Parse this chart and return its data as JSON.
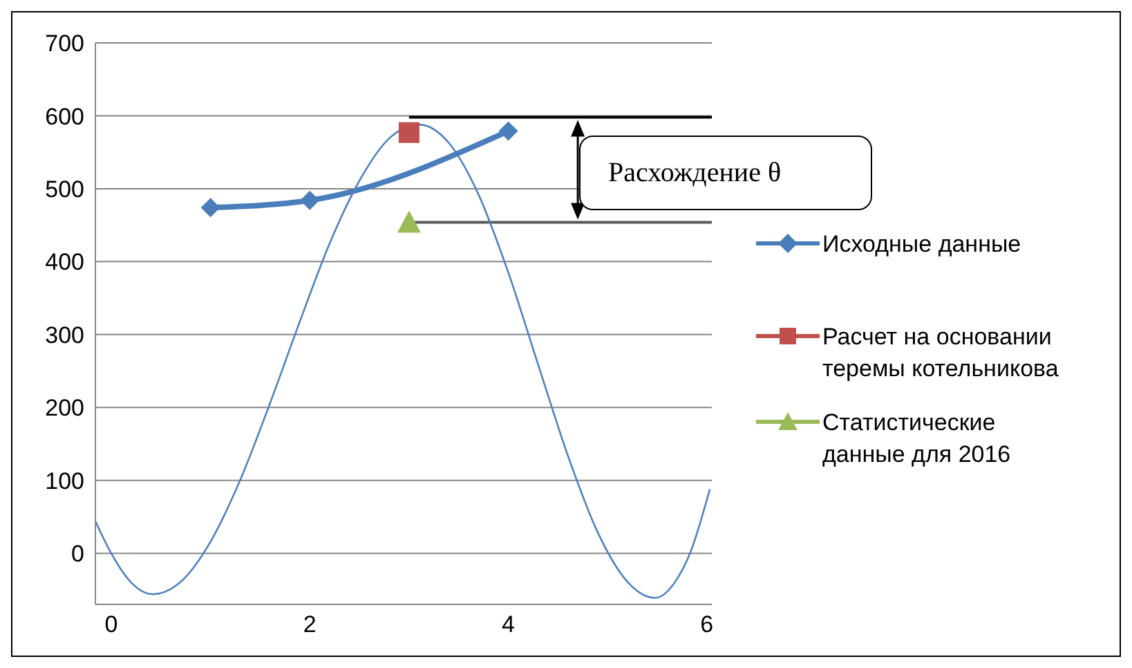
{
  "chart_data": {
    "type": "line",
    "xlim": [
      -0.16,
      6.05
    ],
    "xticks": [
      0,
      2,
      4,
      6
    ],
    "ylim": [
      -70,
      700
    ],
    "yticks": [
      0,
      100,
      200,
      300,
      400,
      500,
      600,
      700
    ],
    "grid": "y",
    "legend": "right",
    "annotations": [
      "Расхождение θ"
    ],
    "ref_lines": [
      {
        "axis": "y",
        "value": 598,
        "color": "#000000"
      },
      {
        "axis": "y",
        "value": 454,
        "color": "#595959"
      }
    ],
    "series": [
      {
        "color": "#4f81bd",
        "marker": "none",
        "x": [
          -0.16,
          0,
          0.2,
          0.42,
          0.7,
          1.0,
          1.3,
          1.6,
          1.9,
          2.2,
          2.5,
          2.8,
          3.1,
          3.4,
          3.7,
          4.0,
          4.3,
          4.6,
          4.9,
          5.2,
          5.48,
          5.7,
          5.83,
          6.03
        ],
        "values": [
          44,
          0,
          -40,
          -56,
          -39,
          16,
          101,
          206,
          318,
          425,
          511,
          569,
          588,
          563,
          492,
          385,
          259,
          134,
          29,
          -39,
          -61,
          -35,
          0,
          88
        ]
      },
      {
        "name": "Исходные данные",
        "color": "#4a7ebb",
        "marker": "diamond",
        "x": [
          1,
          2,
          4
        ],
        "values": [
          474,
          484,
          579
        ]
      },
      {
        "name": "Расчет на основании теремы котельникова",
        "color": "#c0504d",
        "marker": "square",
        "x": [
          3
        ],
        "values": [
          577
        ]
      },
      {
        "name": "Статистические данные для 2016",
        "color": "#9bbb59",
        "marker": "triangle",
        "x": [
          3
        ],
        "values": [
          454
        ]
      }
    ]
  }
}
